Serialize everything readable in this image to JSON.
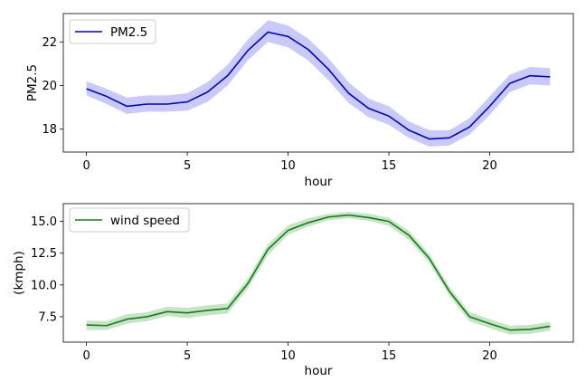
{
  "chart_data": [
    {
      "type": "line",
      "xlabel": "hour",
      "ylabel": "PM2.5",
      "xlim": [
        -1.15,
        24.15
      ],
      "ylim": [
        16.95,
        23.3
      ],
      "xticks": [
        0,
        5,
        10,
        15,
        20
      ],
      "yticks": [
        18,
        20,
        22
      ],
      "legend_position": "top-left",
      "series": [
        {
          "name": "PM2.5",
          "color": "#0000cc",
          "band_color": "#6666ee",
          "x": [
            0,
            1,
            2,
            3,
            4,
            5,
            6,
            7,
            8,
            9,
            10,
            11,
            12,
            13,
            14,
            15,
            16,
            17,
            18,
            19,
            20,
            21,
            22,
            23
          ],
          "values": [
            19.85,
            19.5,
            19.05,
            19.15,
            19.15,
            19.25,
            19.7,
            20.45,
            21.6,
            22.45,
            22.25,
            21.65,
            20.75,
            19.65,
            18.95,
            18.6,
            17.95,
            17.55,
            17.6,
            18.1,
            19.05,
            20.1,
            20.45,
            20.4
          ],
          "lower": [
            19.55,
            19.15,
            18.7,
            18.8,
            18.8,
            18.85,
            19.25,
            20.0,
            21.15,
            22.0,
            21.75,
            21.15,
            20.25,
            19.2,
            18.55,
            18.2,
            17.6,
            17.2,
            17.25,
            17.75,
            18.65,
            19.7,
            20.05,
            20.0
          ],
          "upper": [
            20.2,
            19.85,
            19.45,
            19.55,
            19.55,
            19.65,
            20.15,
            20.95,
            22.1,
            23.0,
            22.75,
            22.15,
            21.25,
            20.15,
            19.4,
            19.05,
            18.35,
            17.95,
            17.95,
            18.5,
            19.5,
            20.5,
            20.85,
            20.8
          ]
        }
      ]
    },
    {
      "type": "line",
      "xlabel": "hour",
      "ylabel": "(kmph)",
      "xlim": [
        -1.15,
        24.15
      ],
      "ylim": [
        5.5,
        16.4
      ],
      "xticks": [
        0,
        5,
        10,
        15,
        20
      ],
      "yticks": [
        7.5,
        10.0,
        12.5,
        15.0
      ],
      "ytick_labels": [
        "7.5",
        "10.0",
        "12.5",
        "15.0"
      ],
      "legend_position": "top-left",
      "series": [
        {
          "name": "wind speed",
          "color": "#108010",
          "band_color": "#60b060",
          "x": [
            0,
            1,
            2,
            3,
            4,
            5,
            6,
            7,
            8,
            9,
            10,
            11,
            12,
            13,
            14,
            15,
            16,
            17,
            18,
            19,
            20,
            21,
            22,
            23
          ],
          "values": [
            6.85,
            6.8,
            7.3,
            7.5,
            7.9,
            7.8,
            8.0,
            8.15,
            10.1,
            12.8,
            14.3,
            14.9,
            15.35,
            15.5,
            15.3,
            15.0,
            13.9,
            12.1,
            9.5,
            7.5,
            6.95,
            6.45,
            6.5,
            6.75
          ],
          "lower": [
            6.45,
            6.45,
            6.95,
            7.15,
            7.55,
            7.4,
            7.6,
            7.75,
            9.7,
            12.35,
            13.95,
            14.6,
            15.1,
            15.25,
            15.05,
            14.65,
            13.55,
            11.75,
            9.15,
            7.15,
            6.6,
            6.1,
            6.15,
            6.4
          ],
          "upper": [
            7.2,
            7.15,
            7.7,
            7.85,
            8.3,
            8.2,
            8.4,
            8.55,
            10.5,
            13.2,
            14.7,
            15.25,
            15.6,
            15.75,
            15.6,
            15.3,
            14.25,
            12.45,
            9.85,
            7.85,
            7.3,
            6.8,
            6.85,
            7.1
          ]
        }
      ]
    }
  ]
}
